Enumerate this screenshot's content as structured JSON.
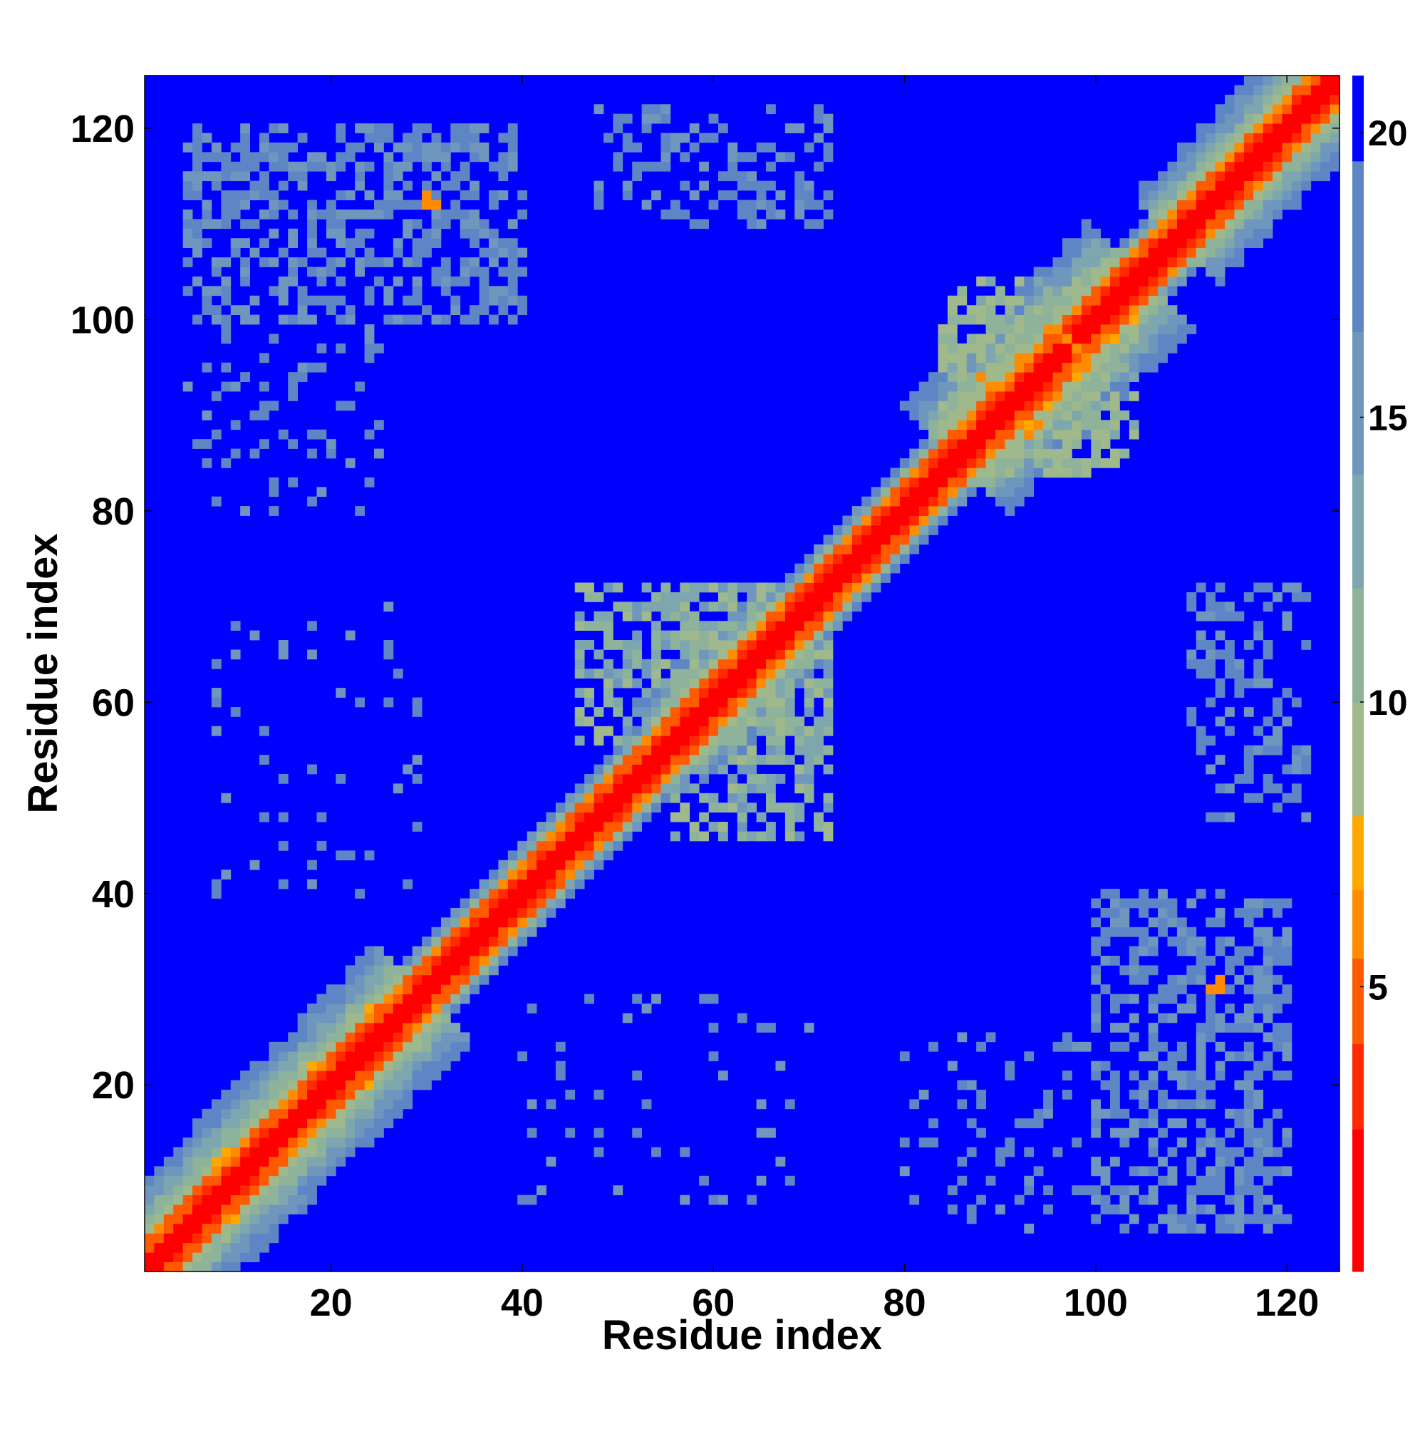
{
  "chart_data": {
    "type": "heatmap",
    "title": "",
    "xlabel": "Residue index",
    "ylabel": "Residue index",
    "n_residues": 125,
    "xlim": [
      1,
      125
    ],
    "ylim": [
      1,
      125
    ],
    "x_ticks": [
      20,
      40,
      60,
      80,
      100,
      120
    ],
    "y_ticks": [
      20,
      40,
      60,
      80,
      100,
      120
    ],
    "colorbar": {
      "ticks": [
        5,
        10,
        15,
        20
      ],
      "range": [
        0,
        21
      ],
      "colors": [
        "#ff0000",
        "#ff2a00",
        "#ff5a00",
        "#ff8c00",
        "#ffa800",
        "#9fb88c",
        "#8fb29a",
        "#7ea6ae",
        "#6f97bd",
        "#5f86c4",
        "#0000ff"
      ],
      "thresholds": [
        2.5,
        4,
        5.5,
        6.7,
        8,
        10,
        12,
        14,
        16.5,
        19.5
      ]
    },
    "description_values": {
      "diagonal": 0,
      "background": 21,
      "near_diagonal_width": 6,
      "contact_patches": [
        {
          "x": [
            92,
            100
          ],
          "y": [
            86,
            100
          ],
          "value": 6
        },
        {
          "x": [
            110,
            115
          ],
          "y": [
            30,
            33
          ],
          "value": 6
        },
        {
          "x": [
            30,
            33
          ],
          "y": [
            110,
            115
          ],
          "value": 6
        },
        {
          "x": [
            100,
            120
          ],
          "y": [
            5,
            40
          ],
          "value": 16
        },
        {
          "x": [
            5,
            40
          ],
          "y": [
            100,
            120
          ],
          "value": 16
        },
        {
          "x": [
            105,
            118
          ],
          "y": [
            50,
            70
          ],
          "value": 17
        },
        {
          "x": [
            50,
            70
          ],
          "y": [
            105,
            118
          ],
          "value": 17
        }
      ]
    }
  }
}
